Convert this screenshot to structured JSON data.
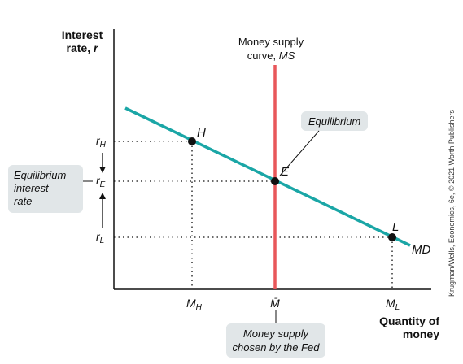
{
  "y_axis_title": {
    "line1": "Interest",
    "line2_text": "rate, ",
    "line2_var": "r"
  },
  "x_axis_title": {
    "line1": "Quantity of",
    "line2": "money"
  },
  "ms_curve_label": {
    "line1": "Money supply",
    "line2_text": "curve, ",
    "line2_var": "MS"
  },
  "md_curve_label": "MD",
  "points": {
    "H": {
      "label": "H",
      "quantity": "M_H",
      "rate": "r_H"
    },
    "E": {
      "label": "E",
      "quantity": "M̄",
      "rate": "r_E"
    },
    "L": {
      "label": "L",
      "quantity": "M_L",
      "rate": "r_L"
    }
  },
  "y_ticks": {
    "rH": {
      "main": "r",
      "sub": "H"
    },
    "rE": {
      "main": "r",
      "sub": "E"
    },
    "rL": {
      "main": "r",
      "sub": "L"
    }
  },
  "x_ticks": {
    "MH": {
      "main": "M",
      "sub": "H"
    },
    "Mbar": {
      "main": "M̄"
    },
    "ML": {
      "main": "M",
      "sub": "L"
    }
  },
  "callouts": {
    "equilibrium": "Equilibrium",
    "equilibrium_rate": {
      "line1": "Equilibrium",
      "line2": "interest",
      "line3": "rate"
    },
    "money_supply_fed": {
      "line1": "Money supply",
      "line2": "chosen by the Fed"
    }
  },
  "credit": "Krugman/Wells, Economics, 6e, © 2021 Worth Publishers",
  "colors": {
    "md_curve": "#1aa6a6",
    "ms_curve": "#e8575a",
    "callout_bg": "#e1e6e8",
    "axis": "#111111"
  }
}
